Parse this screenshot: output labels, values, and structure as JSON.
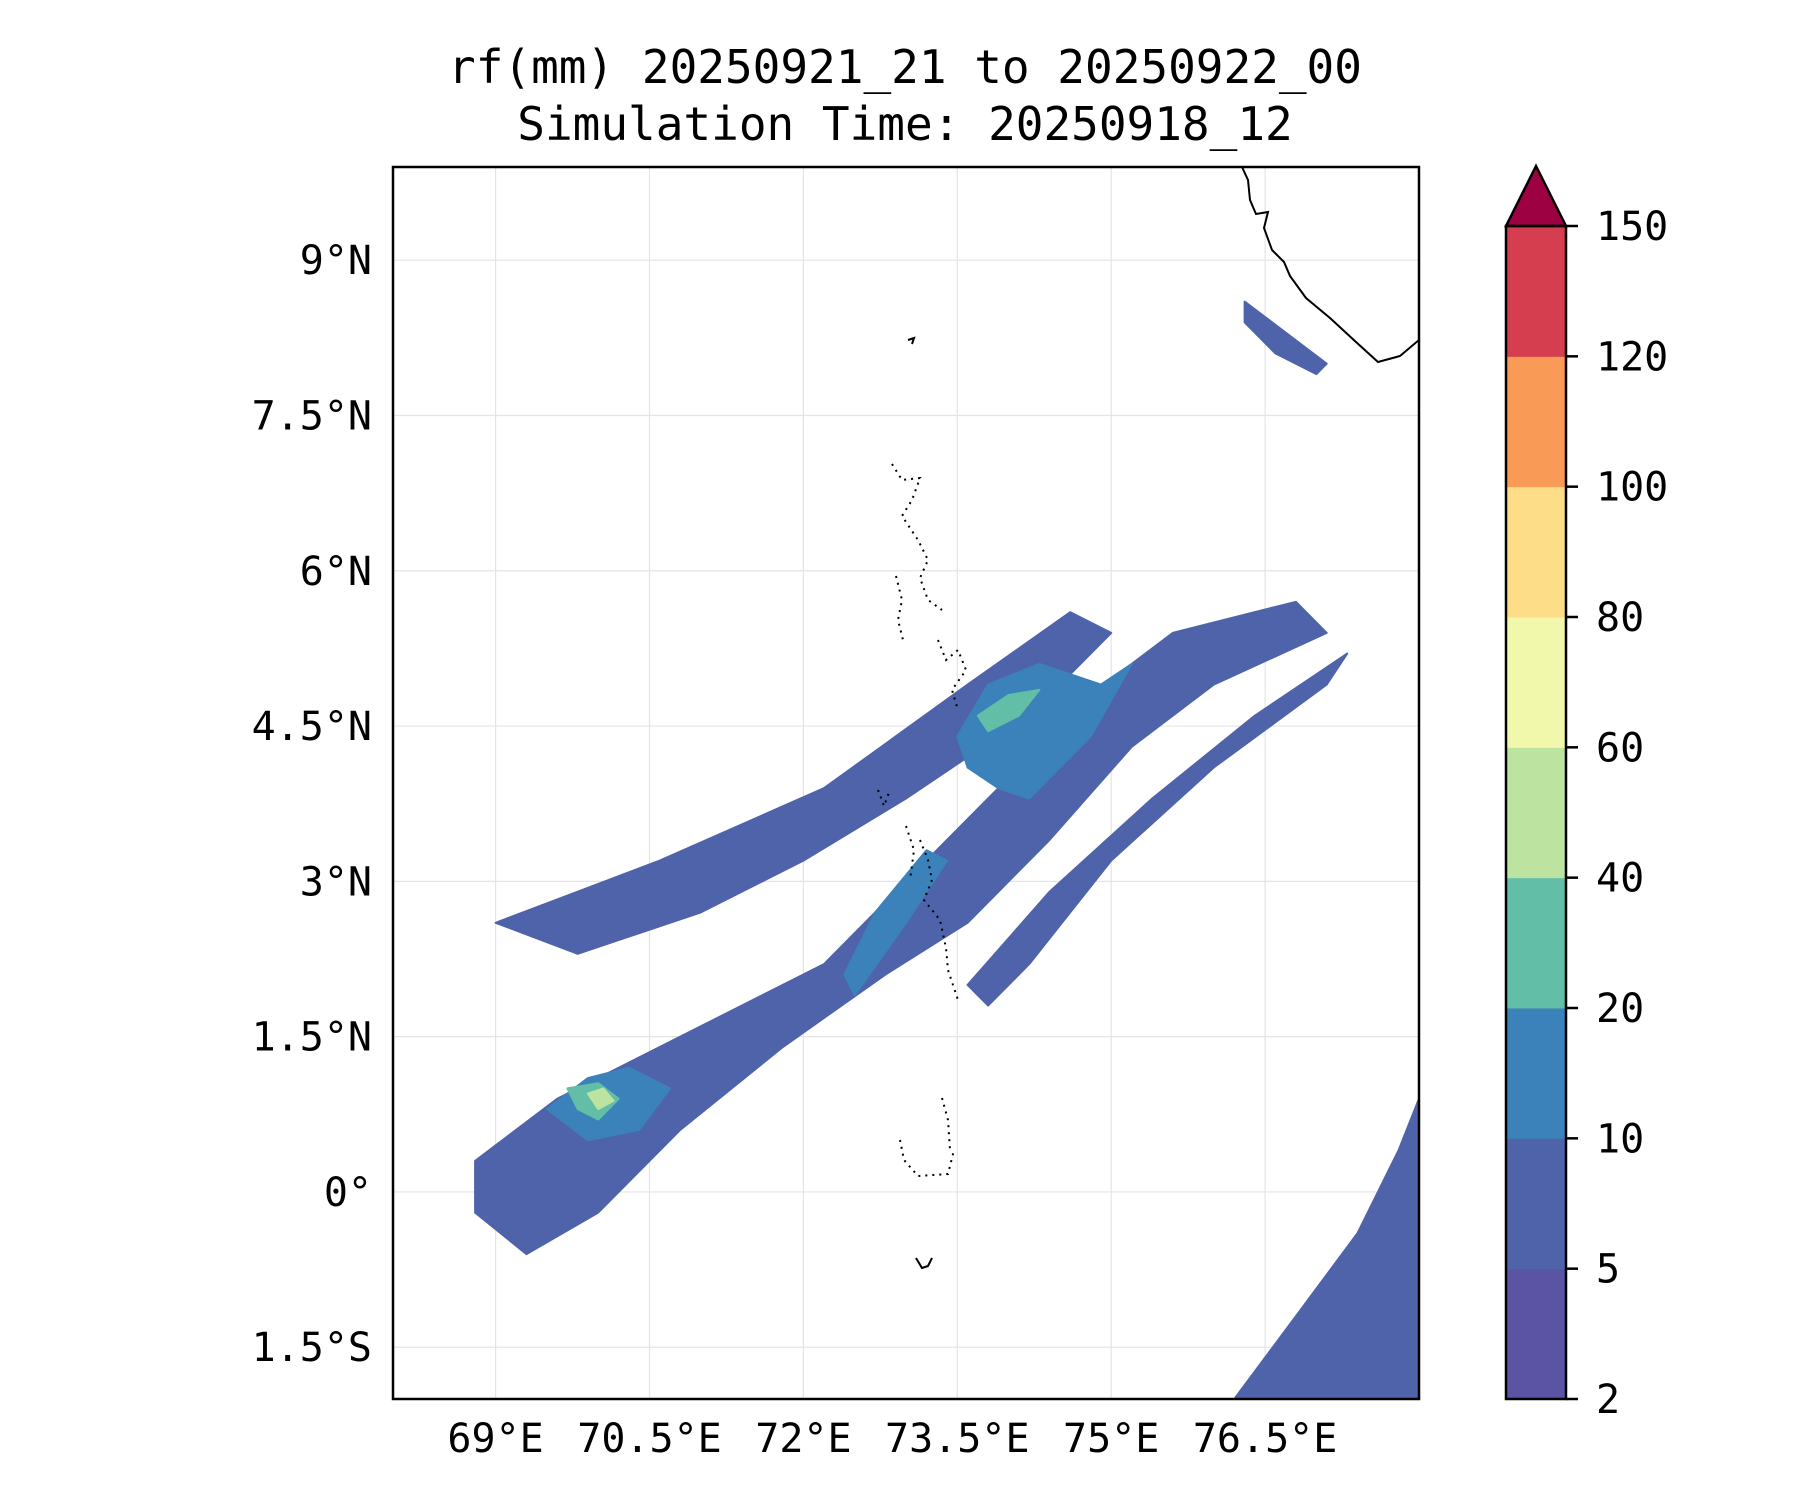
{
  "title": {
    "line1": "rf(mm) 20250921_21 to 20250922_00",
    "line2": "Simulation Time: 20250918_12"
  },
  "map": {
    "variable": "rf",
    "units": "mm",
    "lon_range": [
      68.0,
      78.0
    ],
    "lat_range": [
      -2.0,
      9.9
    ],
    "gridlines": true,
    "xticks": [
      {
        "value": 69.0,
        "label": "69°E"
      },
      {
        "value": 70.5,
        "label": "70.5°E"
      },
      {
        "value": 72.0,
        "label": "72°E"
      },
      {
        "value": 73.5,
        "label": "73.5°E"
      },
      {
        "value": 75.0,
        "label": "75°E"
      },
      {
        "value": 76.5,
        "label": "76.5°E"
      }
    ],
    "yticks": [
      {
        "value": 9.0,
        "label": "9°N"
      },
      {
        "value": 7.5,
        "label": "7.5°N"
      },
      {
        "value": 6.0,
        "label": "6°N"
      },
      {
        "value": 4.5,
        "label": "4.5°N"
      },
      {
        "value": 3.0,
        "label": "3°N"
      },
      {
        "value": 1.5,
        "label": "1.5°N"
      },
      {
        "value": 0.0,
        "label": "0°"
      },
      {
        "value": -1.5,
        "label": "1.5°S"
      }
    ],
    "coastline_color": "#000000",
    "rain_bands": [
      {
        "level": 5,
        "color": "#4f63ab",
        "pts": [
          [
            68.8,
            0.3
          ],
          [
            69.6,
            0.9
          ],
          [
            71.0,
            1.6
          ],
          [
            72.2,
            2.2
          ],
          [
            73.2,
            3.2
          ],
          [
            74.0,
            4.0
          ],
          [
            74.8,
            4.8
          ],
          [
            75.6,
            5.4
          ],
          [
            76.8,
            5.7
          ],
          [
            77.1,
            5.4
          ],
          [
            76.0,
            4.9
          ],
          [
            75.2,
            4.3
          ],
          [
            74.4,
            3.4
          ],
          [
            73.6,
            2.6
          ],
          [
            72.8,
            2.1
          ],
          [
            71.8,
            1.4
          ],
          [
            70.8,
            0.6
          ],
          [
            70.0,
            -0.2
          ],
          [
            69.3,
            -0.6
          ],
          [
            68.8,
            -0.2
          ]
        ]
      },
      {
        "level": 5,
        "color": "#4f63ab",
        "pts": [
          [
            69.0,
            2.6
          ],
          [
            70.6,
            3.2
          ],
          [
            72.2,
            3.9
          ],
          [
            73.6,
            4.9
          ],
          [
            74.6,
            5.6
          ],
          [
            75.0,
            5.4
          ],
          [
            74.2,
            4.6
          ],
          [
            73.0,
            3.8
          ],
          [
            72.0,
            3.2
          ],
          [
            71.0,
            2.7
          ],
          [
            69.8,
            2.3
          ]
        ]
      },
      {
        "level": 5,
        "color": "#4f63ab",
        "pts": [
          [
            73.6,
            2.0
          ],
          [
            74.4,
            2.9
          ],
          [
            75.4,
            3.8
          ],
          [
            76.4,
            4.6
          ],
          [
            77.3,
            5.2
          ],
          [
            77.1,
            4.9
          ],
          [
            76.0,
            4.1
          ],
          [
            75.0,
            3.2
          ],
          [
            74.2,
            2.2
          ],
          [
            73.8,
            1.8
          ]
        ]
      },
      {
        "level": 5,
        "color": "#4f63ab",
        "pts": [
          [
            76.3,
            8.6
          ],
          [
            76.7,
            8.3
          ],
          [
            77.1,
            8.0
          ],
          [
            77.0,
            7.9
          ],
          [
            76.6,
            8.1
          ],
          [
            76.3,
            8.4
          ]
        ]
      },
      {
        "level": 5,
        "color": "#4f63ab",
        "pts": [
          [
            76.2,
            -2.0
          ],
          [
            76.8,
            -1.2
          ],
          [
            77.4,
            -0.4
          ],
          [
            77.8,
            0.4
          ],
          [
            78.0,
            0.9
          ],
          [
            78.0,
            -2.0
          ]
        ]
      },
      {
        "level": 10,
        "color": "#3b81ba",
        "pts": [
          [
            69.5,
            0.8
          ],
          [
            69.9,
            1.1
          ],
          [
            70.3,
            1.2
          ],
          [
            70.7,
            1.0
          ],
          [
            70.4,
            0.6
          ],
          [
            69.9,
            0.5
          ]
        ]
      },
      {
        "level": 10,
        "color": "#3b81ba",
        "pts": [
          [
            72.5,
            1.9
          ],
          [
            73.0,
            2.6
          ],
          [
            73.4,
            3.2
          ],
          [
            73.2,
            3.3
          ],
          [
            72.7,
            2.7
          ],
          [
            72.4,
            2.1
          ]
        ]
      },
      {
        "level": 10,
        "color": "#3b81ba",
        "pts": [
          [
            73.5,
            4.4
          ],
          [
            73.8,
            4.9
          ],
          [
            74.3,
            5.1
          ],
          [
            74.9,
            4.9
          ],
          [
            75.2,
            5.1
          ],
          [
            74.8,
            4.4
          ],
          [
            74.2,
            3.8
          ],
          [
            73.9,
            3.9
          ],
          [
            73.6,
            4.1
          ]
        ]
      },
      {
        "level": 20,
        "color": "#62bea6",
        "pts": [
          [
            73.7,
            4.6
          ],
          [
            74.0,
            4.8
          ],
          [
            74.3,
            4.85
          ],
          [
            74.1,
            4.6
          ],
          [
            73.8,
            4.45
          ]
        ]
      },
      {
        "level": 20,
        "color": "#62bea6",
        "pts": [
          [
            69.7,
            1.0
          ],
          [
            70.0,
            1.05
          ],
          [
            70.2,
            0.9
          ],
          [
            70.0,
            0.7
          ],
          [
            69.8,
            0.8
          ]
        ]
      },
      {
        "level": 40,
        "color": "#bde3a0",
        "pts": [
          [
            69.9,
            0.95
          ],
          [
            70.05,
            1.0
          ],
          [
            70.15,
            0.88
          ],
          [
            70.0,
            0.8
          ]
        ]
      }
    ]
  },
  "colorbar": {
    "levels": [
      2,
      5,
      10,
      20,
      40,
      60,
      80,
      100,
      120,
      150
    ],
    "labels": [
      "2",
      "5",
      "10",
      "20",
      "40",
      "60",
      "80",
      "100",
      "120",
      "150"
    ],
    "colors": [
      "#5b53a4",
      "#4f63ab",
      "#3b81ba",
      "#62bea6",
      "#bde3a0",
      "#f2f8ab",
      "#fddd88",
      "#f99b56",
      "#d53e4f"
    ],
    "extend_color": "#9e0142"
  }
}
